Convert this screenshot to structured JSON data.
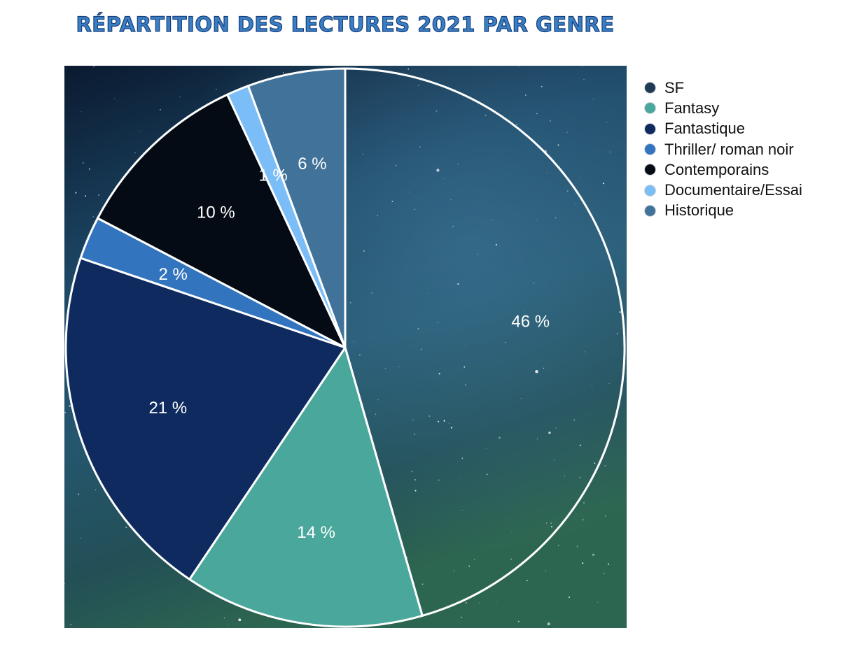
{
  "chart_data": {
    "type": "pie",
    "title": "Répartition des lectures 2021 par genre",
    "slices": [
      {
        "label": "SF",
        "value": 46,
        "data_label": "46 %",
        "color": "#1f3b55"
      },
      {
        "label": "Fantasy",
        "value": 14,
        "data_label": "14 %",
        "color": "#4aa79c"
      },
      {
        "label": "Fantastique",
        "value": 21,
        "data_label": "21 %",
        "color": "#0e2a5f"
      },
      {
        "label": "Thriller/ roman noir",
        "value": 2.5,
        "data_label": "2 %",
        "color": "#3374bf"
      },
      {
        "label": "Contemporains",
        "value": 10.5,
        "data_label": "10 %",
        "color": "#050b14"
      },
      {
        "label": "Documentaire/Essai",
        "value": 1.3,
        "data_label": "1 %",
        "color": "#7bbdf6"
      },
      {
        "label": "Historique",
        "value": 5.7,
        "data_label": "6 %",
        "color": "#41739a"
      }
    ],
    "legend_position": "right",
    "start_angle": "top",
    "direction": "clockwise"
  }
}
